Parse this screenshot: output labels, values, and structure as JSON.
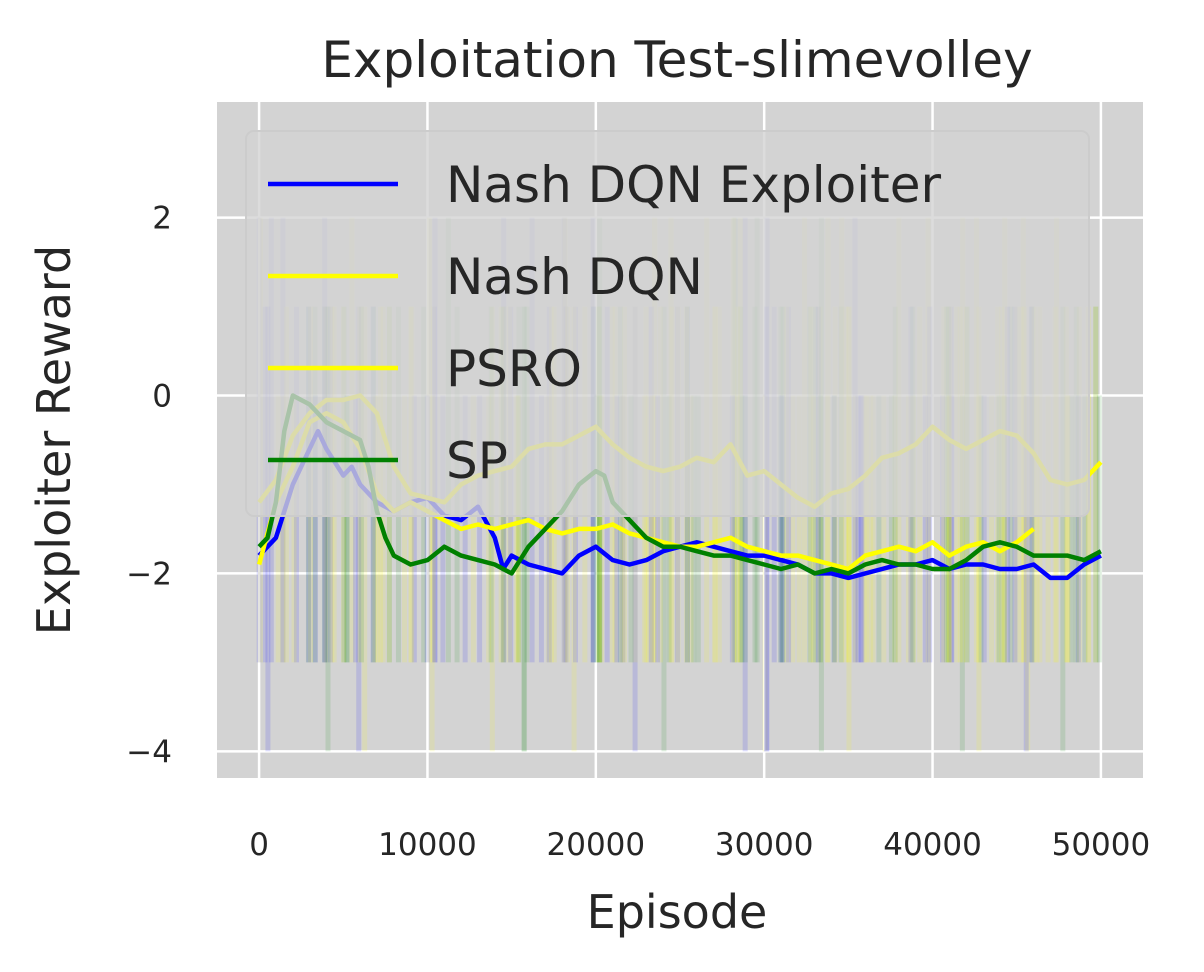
{
  "chart_data": {
    "type": "line",
    "title": "Exploitation Test-slimevolley",
    "xlabel": "Episode",
    "ylabel": "Exploiter Reward",
    "xlim": [
      -2500,
      52500
    ],
    "ylim": [
      -4.3,
      3.3
    ],
    "xticks": [
      0,
      10000,
      20000,
      30000,
      40000,
      50000
    ],
    "xtick_labels": [
      "0",
      "10000",
      "20000",
      "30000",
      "40000",
      "50000"
    ],
    "yticks": [
      -4,
      -2,
      0,
      2
    ],
    "ytick_labels": [
      "−4",
      "−2",
      "0",
      "2"
    ],
    "grid": true,
    "legend_position": "upper-left",
    "background": "#d3d3d3",
    "series": [
      {
        "name": "Nash DQN Exploiter",
        "color": "#0000ff",
        "x": [
          0,
          1000,
          2000,
          3000,
          3500,
          4000,
          5000,
          5500,
          6000,
          7000,
          8000,
          9000,
          10000,
          11000,
          12000,
          13000,
          14000,
          14500,
          15000,
          16000,
          17000,
          18000,
          19000,
          20000,
          21000,
          22000,
          23000,
          24000,
          25000,
          26000,
          27000,
          28000,
          29000,
          30000,
          31000,
          32000,
          33000,
          34000,
          35000,
          36000,
          37000,
          38000,
          39000,
          40000,
          41000,
          42000,
          43000,
          44000,
          45000,
          46000,
          47000,
          48000,
          49000,
          50000
        ],
        "y": [
          -1.8,
          -1.6,
          -1.0,
          -0.6,
          -0.4,
          -0.6,
          -0.9,
          -0.8,
          -1.0,
          -1.2,
          -1.3,
          -1.2,
          -1.15,
          -1.35,
          -1.4,
          -1.25,
          -1.6,
          -1.95,
          -1.8,
          -1.9,
          -1.95,
          -2.0,
          -1.8,
          -1.7,
          -1.85,
          -1.9,
          -1.85,
          -1.75,
          -1.7,
          -1.65,
          -1.7,
          -1.75,
          -1.8,
          -1.8,
          -1.85,
          -1.9,
          -2.0,
          -2.0,
          -2.05,
          -2.0,
          -1.95,
          -1.9,
          -1.9,
          -1.85,
          -1.95,
          -1.9,
          -1.9,
          -1.95,
          -1.95,
          -1.9,
          -2.05,
          -2.05,
          -1.9,
          -1.8
        ]
      },
      {
        "name": "Nash DQN",
        "color": "#ffff00",
        "x": [
          0,
          1000,
          2000,
          3000,
          4000,
          5000,
          6000,
          7000,
          8000,
          9000,
          10000,
          11000,
          12000,
          13000,
          14000,
          15000,
          16000,
          17000,
          18000,
          19000,
          20000,
          21000,
          22000,
          23000,
          24000,
          25000,
          26000,
          27000,
          28000,
          29000,
          30000,
          31000,
          32000,
          33000,
          34000,
          35000,
          36000,
          37000,
          38000,
          39000,
          40000,
          41000,
          42000,
          43000,
          44000,
          45000,
          46000
        ],
        "y": [
          -1.9,
          -1.2,
          -0.8,
          -0.3,
          -0.2,
          -0.3,
          -0.6,
          -1.1,
          -1.3,
          -1.2,
          -1.3,
          -1.4,
          -1.5,
          -1.45,
          -1.5,
          -1.45,
          -1.4,
          -1.5,
          -1.55,
          -1.5,
          -1.5,
          -1.45,
          -1.55,
          -1.6,
          -1.65,
          -1.7,
          -1.7,
          -1.65,
          -1.6,
          -1.7,
          -1.75,
          -1.8,
          -1.8,
          -1.85,
          -1.9,
          -1.95,
          -1.8,
          -1.75,
          -1.7,
          -1.75,
          -1.65,
          -1.8,
          -1.7,
          -1.65,
          -1.75,
          -1.65,
          -1.5
        ]
      },
      {
        "name": "PSRO",
        "color": "#ffff00",
        "x": [
          0,
          1000,
          2000,
          3000,
          4000,
          5000,
          6000,
          7000,
          8000,
          9000,
          10000,
          11000,
          12000,
          13000,
          14000,
          15000,
          16000,
          17000,
          18000,
          19000,
          20000,
          21000,
          22000,
          23000,
          24000,
          25000,
          26000,
          27000,
          28000,
          29000,
          30000,
          31000,
          32000,
          33000,
          34000,
          35000,
          36000,
          37000,
          38000,
          39000,
          40000,
          41000,
          42000,
          43000,
          44000,
          45000,
          46000,
          47000,
          48000,
          49000,
          50000
        ],
        "y": [
          -1.2,
          -0.95,
          -0.45,
          -0.2,
          -0.05,
          -0.05,
          0.0,
          -0.2,
          -0.8,
          -1.1,
          -1.15,
          -1.2,
          -1.0,
          -0.9,
          -0.85,
          -0.8,
          -0.6,
          -0.55,
          -0.55,
          -0.45,
          -0.35,
          -0.55,
          -0.7,
          -0.8,
          -0.85,
          -0.8,
          -0.7,
          -0.75,
          -0.55,
          -0.9,
          -0.85,
          -1.0,
          -1.15,
          -1.25,
          -1.1,
          -1.05,
          -0.9,
          -0.7,
          -0.65,
          -0.55,
          -0.35,
          -0.5,
          -0.6,
          -0.5,
          -0.4,
          -0.45,
          -0.65,
          -0.95,
          -1.0,
          -0.95,
          -0.75
        ]
      },
      {
        "name": "SP",
        "color": "#008000",
        "x": [
          0,
          500,
          1000,
          1500,
          2000,
          2500,
          3000,
          3500,
          4000,
          5000,
          6000,
          6500,
          7000,
          7500,
          8000,
          9000,
          10000,
          11000,
          12000,
          13000,
          14000,
          15000,
          16000,
          17000,
          18000,
          19000,
          20000,
          20500,
          21000,
          22000,
          23000,
          24000,
          25000,
          26000,
          27000,
          28000,
          29000,
          30000,
          31000,
          32000,
          33000,
          34000,
          35000,
          36000,
          37000,
          38000,
          39000,
          40000,
          41000,
          42000,
          43000,
          44000,
          45000,
          46000,
          47000,
          48000,
          49000,
          50000
        ],
        "y": [
          -1.7,
          -1.6,
          -1.2,
          -0.4,
          0.0,
          -0.05,
          -0.1,
          -0.2,
          -0.3,
          -0.4,
          -0.5,
          -0.8,
          -1.3,
          -1.6,
          -1.8,
          -1.9,
          -1.85,
          -1.7,
          -1.8,
          -1.85,
          -1.9,
          -2.0,
          -1.7,
          -1.5,
          -1.3,
          -1.0,
          -0.85,
          -0.9,
          -1.2,
          -1.4,
          -1.6,
          -1.7,
          -1.7,
          -1.75,
          -1.8,
          -1.8,
          -1.85,
          -1.9,
          -1.95,
          -1.9,
          -2.0,
          -1.95,
          -2.0,
          -1.9,
          -1.85,
          -1.9,
          -1.9,
          -1.95,
          -1.95,
          -1.85,
          -1.7,
          -1.65,
          -1.7,
          -1.8,
          -1.8,
          -1.8,
          -1.85,
          -1.75
        ]
      }
    ]
  }
}
